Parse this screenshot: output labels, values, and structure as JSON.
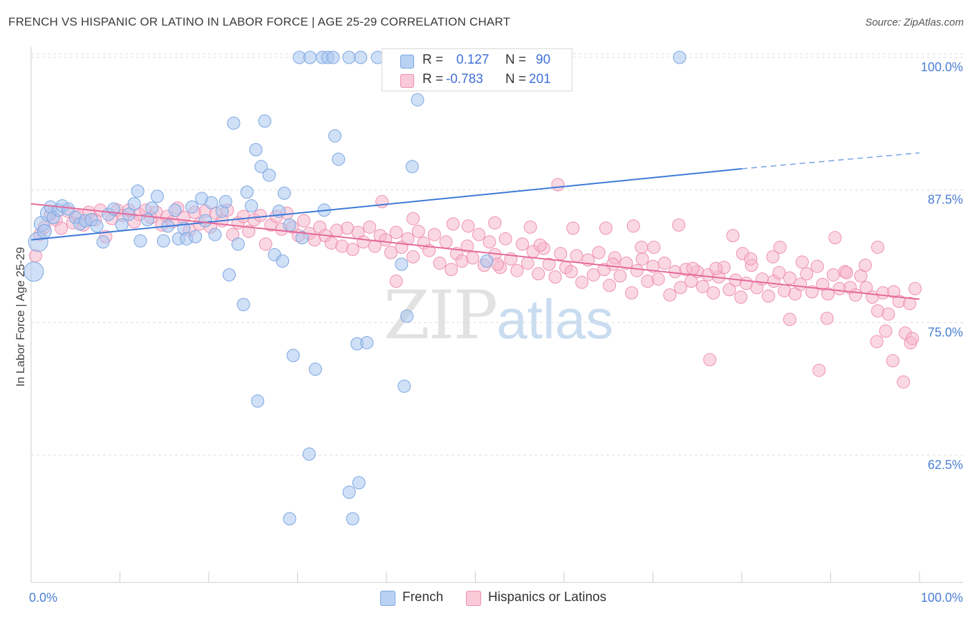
{
  "header": {
    "title": "FRENCH VS HISPANIC OR LATINO IN LABOR FORCE | AGE 25-29 CORRELATION CHART",
    "source": "Source: ZipAtlas.com"
  },
  "watermark": {
    "zip": "ZIP",
    "atlas": "atlas"
  },
  "legend": {
    "french": {
      "r_label": "R =",
      "r_value": "0.127",
      "n_label": "N =",
      "n_value": "90",
      "name": "French"
    },
    "hispanic": {
      "r_label": "R =",
      "r_value": "-0.783",
      "n_label": "N =",
      "n_value": "201",
      "name": "Hispanics or Latinos"
    }
  },
  "colors": {
    "french_fill": "#a9c7f0",
    "french_stroke": "#7aa5e0",
    "french_line": "#3b78d8",
    "hispanic_fill": "#f6b8cc",
    "hispanic_stroke": "#ee8fb0",
    "hispanic_line": "#e4689a",
    "tick_label": "#4a7fd4",
    "grid": "#dddddd"
  },
  "chart_data": {
    "type": "scatter",
    "title": "FRENCH VS HISPANIC OR LATINO IN LABOR FORCE | AGE 25-29 CORRELATION CHART",
    "xlabel": "",
    "ylabel": "In Labor Force | Age 25-29",
    "xlim": [
      0,
      100
    ],
    "ylim": [
      50.5,
      101.5
    ],
    "x_tick_labels": [
      "0.0%",
      "100.0%"
    ],
    "y_ticks": [
      100.0,
      87.5,
      75.0,
      62.5
    ],
    "y_tick_labels": [
      "100.0%",
      "87.5%",
      "75.0%",
      "62.5%"
    ],
    "grid": "horizontal dashed",
    "series": [
      {
        "name": "French",
        "trend": {
          "x0": 0,
          "y0": 82.8,
          "x1": 80,
          "y1": 89.5,
          "dashed_to_x": 100,
          "dashed_to_y": 91.0
        },
        "points": [
          [
            0.3,
            79.8
          ],
          [
            0.8,
            82.6
          ],
          [
            1.2,
            84.3
          ],
          [
            1.5,
            83.6
          ],
          [
            1.9,
            85.3
          ],
          [
            2.2,
            85.9
          ],
          [
            2.5,
            84.9
          ],
          [
            3.1,
            85.6
          ],
          [
            3.5,
            86.0
          ],
          [
            4.2,
            85.7
          ],
          [
            5.0,
            84.9
          ],
          [
            5.5,
            84.3
          ],
          [
            6.1,
            84.6
          ],
          [
            6.8,
            84.7
          ],
          [
            7.4,
            84.1
          ],
          [
            8.1,
            82.6
          ],
          [
            8.7,
            85.2
          ],
          [
            9.3,
            85.7
          ],
          [
            10.2,
            84.2
          ],
          [
            11.0,
            85.2
          ],
          [
            11.6,
            86.2
          ],
          [
            12.0,
            87.4
          ],
          [
            12.3,
            82.7
          ],
          [
            13.1,
            84.7
          ],
          [
            13.6,
            85.8
          ],
          [
            14.2,
            86.9
          ],
          [
            14.9,
            82.7
          ],
          [
            15.4,
            84.1
          ],
          [
            16.2,
            85.6
          ],
          [
            16.6,
            82.9
          ],
          [
            17.2,
            83.9
          ],
          [
            17.5,
            82.9
          ],
          [
            18.1,
            85.9
          ],
          [
            18.5,
            83.1
          ],
          [
            19.2,
            86.7
          ],
          [
            19.6,
            84.6
          ],
          [
            20.3,
            86.3
          ],
          [
            20.7,
            83.3
          ],
          [
            21.5,
            85.5
          ],
          [
            21.9,
            86.4
          ],
          [
            22.3,
            79.5
          ],
          [
            22.8,
            93.8
          ],
          [
            23.3,
            82.4
          ],
          [
            23.9,
            76.7
          ],
          [
            24.3,
            87.3
          ],
          [
            24.8,
            86.0
          ],
          [
            25.3,
            91.3
          ],
          [
            25.9,
            89.7
          ],
          [
            26.3,
            94.0
          ],
          [
            26.8,
            88.9
          ],
          [
            27.4,
            81.4
          ],
          [
            27.9,
            85.5
          ],
          [
            28.3,
            80.8
          ],
          [
            28.5,
            87.2
          ],
          [
            29.1,
            84.2
          ],
          [
            30.2,
            100.0
          ],
          [
            31.4,
            100.0
          ],
          [
            32.8,
            100.0
          ],
          [
            33.4,
            100.0
          ],
          [
            34.0,
            100.0
          ],
          [
            35.8,
            100.0
          ],
          [
            37.1,
            100.0
          ],
          [
            39.0,
            100.0
          ],
          [
            42.1,
            100.0
          ],
          [
            44.3,
            100.0
          ],
          [
            47.2,
            100.0
          ],
          [
            56.8,
            100.0
          ],
          [
            73.0,
            100.0
          ],
          [
            40.2,
            100.0
          ],
          [
            52.3,
            100.0
          ],
          [
            43.5,
            96.0
          ],
          [
            34.2,
            92.6
          ],
          [
            34.6,
            90.4
          ],
          [
            42.9,
            89.7
          ],
          [
            41.7,
            80.5
          ],
          [
            29.5,
            71.9
          ],
          [
            32.0,
            70.6
          ],
          [
            25.5,
            67.6
          ],
          [
            42.0,
            69.0
          ],
          [
            36.7,
            73.0
          ],
          [
            37.8,
            73.1
          ],
          [
            42.3,
            75.6
          ],
          [
            31.3,
            62.6
          ],
          [
            35.8,
            59.0
          ],
          [
            36.9,
            59.9
          ],
          [
            29.1,
            56.5
          ],
          [
            36.2,
            56.5
          ],
          [
            51.3,
            80.8
          ],
          [
            30.5,
            83.0
          ],
          [
            33.0,
            85.6
          ]
        ],
        "sizes": {
          "0": 28,
          "1": 28,
          "2": 22,
          "3": 20,
          "4": 22,
          "5": 18
        }
      },
      {
        "name": "Hispanics or Latinos",
        "trend": {
          "x0": 0,
          "y0": 86.2,
          "x1": 100,
          "y1": 77.2
        },
        "points": [
          [
            0.5,
            81.3
          ],
          [
            1.0,
            83.3
          ],
          [
            1.5,
            84.0
          ],
          [
            2.2,
            85.2
          ],
          [
            2.8,
            84.7
          ],
          [
            3.4,
            83.9
          ],
          [
            4.1,
            85.5
          ],
          [
            4.7,
            84.4
          ],
          [
            5.3,
            85.0
          ],
          [
            5.9,
            84.2
          ],
          [
            6.5,
            85.4
          ],
          [
            7.2,
            84.7
          ],
          [
            7.8,
            85.6
          ],
          [
            8.4,
            83.1
          ],
          [
            9.1,
            84.8
          ],
          [
            9.7,
            85.6
          ],
          [
            10.3,
            85.1
          ],
          [
            11.0,
            85.6
          ],
          [
            11.6,
            84.5
          ],
          [
            12.2,
            85.2
          ],
          [
            12.9,
            85.6
          ],
          [
            13.5,
            84.9
          ],
          [
            14.1,
            85.4
          ],
          [
            14.7,
            84.2
          ],
          [
            15.3,
            85.0
          ],
          [
            15.9,
            84.5
          ],
          [
            16.5,
            85.8
          ],
          [
            17.2,
            84.9
          ],
          [
            17.8,
            83.7
          ],
          [
            18.4,
            85.4
          ],
          [
            19.0,
            84.3
          ],
          [
            19.6,
            85.5
          ],
          [
            20.2,
            84.0
          ],
          [
            20.8,
            85.3
          ],
          [
            21.5,
            84.6
          ],
          [
            22.1,
            85.6
          ],
          [
            22.7,
            83.3
          ],
          [
            23.3,
            84.4
          ],
          [
            23.9,
            85.0
          ],
          [
            24.5,
            83.6
          ],
          [
            25.1,
            84.7
          ],
          [
            25.8,
            85.1
          ],
          [
            26.4,
            82.4
          ],
          [
            27.0,
            84.2
          ],
          [
            27.6,
            85.0
          ],
          [
            28.2,
            83.8
          ],
          [
            28.8,
            85.3
          ],
          [
            29.4,
            84.0
          ],
          [
            30.1,
            83.2
          ],
          [
            30.7,
            84.6
          ],
          [
            31.3,
            83.4
          ],
          [
            31.9,
            82.8
          ],
          [
            32.5,
            84.0
          ],
          [
            33.1,
            83.2
          ],
          [
            33.8,
            82.5
          ],
          [
            34.4,
            83.7
          ],
          [
            35.0,
            82.2
          ],
          [
            35.6,
            83.9
          ],
          [
            36.2,
            81.9
          ],
          [
            36.8,
            83.5
          ],
          [
            37.4,
            82.6
          ],
          [
            38.1,
            84.0
          ],
          [
            38.7,
            82.2
          ],
          [
            39.3,
            83.2
          ],
          [
            39.9,
            82.8
          ],
          [
            40.5,
            81.6
          ],
          [
            41.1,
            83.5
          ],
          [
            41.7,
            82.1
          ],
          [
            42.4,
            82.9
          ],
          [
            43.0,
            81.2
          ],
          [
            43.6,
            83.6
          ],
          [
            44.2,
            82.5
          ],
          [
            44.8,
            81.8
          ],
          [
            45.4,
            83.3
          ],
          [
            46.0,
            80.6
          ],
          [
            46.7,
            82.6
          ],
          [
            47.3,
            80.0
          ],
          [
            47.9,
            81.5
          ],
          [
            48.5,
            80.8
          ],
          [
            49.1,
            82.2
          ],
          [
            49.7,
            81.1
          ],
          [
            50.4,
            83.3
          ],
          [
            51.0,
            80.4
          ],
          [
            51.6,
            82.6
          ],
          [
            52.2,
            81.4
          ],
          [
            52.8,
            80.2
          ],
          [
            53.4,
            82.9
          ],
          [
            54.0,
            81.0
          ],
          [
            54.7,
            79.9
          ],
          [
            55.3,
            82.4
          ],
          [
            55.9,
            80.6
          ],
          [
            56.5,
            81.7
          ],
          [
            57.1,
            79.6
          ],
          [
            57.7,
            82.0
          ],
          [
            58.3,
            80.5
          ],
          [
            59.0,
            79.3
          ],
          [
            59.6,
            81.5
          ],
          [
            60.2,
            80.2
          ],
          [
            60.8,
            79.8
          ],
          [
            61.4,
            81.3
          ],
          [
            62.0,
            78.8
          ],
          [
            62.7,
            80.9
          ],
          [
            63.3,
            79.5
          ],
          [
            63.9,
            81.6
          ],
          [
            64.5,
            80.0
          ],
          [
            65.1,
            78.5
          ],
          [
            65.7,
            81.1
          ],
          [
            66.3,
            79.4
          ],
          [
            67.0,
            80.6
          ],
          [
            67.6,
            77.8
          ],
          [
            68.2,
            79.9
          ],
          [
            68.8,
            81.0
          ],
          [
            69.4,
            78.9
          ],
          [
            70.0,
            80.3
          ],
          [
            70.6,
            79.1
          ],
          [
            71.3,
            80.6
          ],
          [
            71.9,
            77.6
          ],
          [
            72.5,
            79.8
          ],
          [
            73.1,
            78.3
          ],
          [
            73.7,
            80.0
          ],
          [
            74.3,
            78.9
          ],
          [
            75.0,
            79.8
          ],
          [
            75.6,
            78.4
          ],
          [
            76.2,
            79.5
          ],
          [
            76.8,
            77.8
          ],
          [
            77.4,
            79.3
          ],
          [
            78.0,
            80.2
          ],
          [
            78.6,
            78.1
          ],
          [
            79.3,
            79.0
          ],
          [
            79.9,
            77.4
          ],
          [
            80.5,
            78.7
          ],
          [
            81.1,
            80.4
          ],
          [
            81.7,
            78.3
          ],
          [
            82.3,
            79.1
          ],
          [
            83.0,
            77.5
          ],
          [
            83.6,
            78.9
          ],
          [
            84.2,
            79.7
          ],
          [
            84.8,
            78.0
          ],
          [
            85.4,
            79.2
          ],
          [
            86.0,
            77.7
          ],
          [
            86.6,
            78.6
          ],
          [
            87.3,
            79.6
          ],
          [
            87.9,
            77.9
          ],
          [
            88.5,
            80.3
          ],
          [
            89.1,
            78.6
          ],
          [
            89.7,
            77.7
          ],
          [
            90.3,
            79.5
          ],
          [
            91.0,
            78.2
          ],
          [
            91.6,
            79.8
          ],
          [
            92.2,
            78.3
          ],
          [
            92.8,
            77.6
          ],
          [
            93.4,
            79.4
          ],
          [
            94.0,
            78.3
          ],
          [
            94.7,
            77.4
          ],
          [
            95.3,
            76.1
          ],
          [
            95.9,
            77.8
          ],
          [
            96.5,
            75.8
          ],
          [
            97.1,
            77.9
          ],
          [
            97.7,
            77.0
          ],
          [
            98.4,
            74.0
          ],
          [
            99.0,
            73.1
          ],
          [
            99.5,
            78.2
          ],
          [
            39.5,
            86.4
          ],
          [
            49.2,
            84.1
          ],
          [
            59.3,
            88.0
          ],
          [
            67.8,
            84.1
          ],
          [
            72.9,
            84.2
          ],
          [
            79.0,
            83.2
          ],
          [
            84.3,
            82.1
          ],
          [
            90.5,
            83.0
          ],
          [
            95.3,
            82.1
          ],
          [
            61.0,
            83.9
          ],
          [
            64.7,
            83.9
          ],
          [
            56.2,
            84.0
          ],
          [
            52.2,
            84.4
          ],
          [
            47.5,
            84.3
          ],
          [
            43.0,
            84.8
          ],
          [
            41.1,
            78.9
          ],
          [
            52.5,
            80.5
          ],
          [
            57.3,
            82.3
          ],
          [
            68.7,
            82.1
          ],
          [
            74.5,
            80.1
          ],
          [
            80.1,
            81.5
          ],
          [
            85.4,
            75.3
          ],
          [
            88.7,
            70.5
          ],
          [
            95.2,
            73.2
          ],
          [
            96.2,
            74.2
          ],
          [
            97.0,
            71.4
          ],
          [
            98.2,
            69.4
          ],
          [
            99.2,
            73.5
          ],
          [
            76.4,
            71.5
          ],
          [
            81.0,
            81.0
          ],
          [
            86.8,
            80.7
          ],
          [
            91.8,
            79.7
          ],
          [
            93.9,
            80.4
          ],
          [
            98.9,
            76.8
          ],
          [
            65.5,
            80.5
          ],
          [
            70.1,
            82.1
          ],
          [
            77.1,
            80.1
          ],
          [
            83.5,
            81.2
          ],
          [
            89.6,
            75.4
          ]
        ]
      }
    ]
  }
}
